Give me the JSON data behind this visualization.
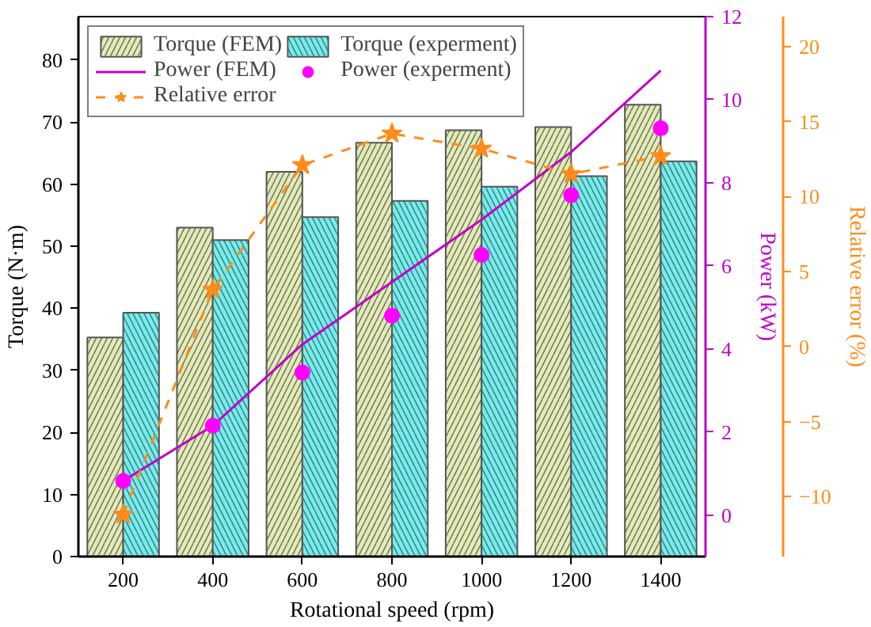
{
  "chart_data": {
    "type": "bar",
    "xlabel": "Rotational speed (rpm)",
    "ylabel": "Torque (N·m)",
    "y2label": "Power (kW)",
    "y3label": "Relative error (%)",
    "categories": [
      "200",
      "400",
      "600",
      "800",
      "1000",
      "1200",
      "1400"
    ],
    "ylim": [
      0,
      87
    ],
    "yticks": [
      0,
      10,
      20,
      30,
      40,
      50,
      60,
      70,
      80
    ],
    "y2lim": [
      -1,
      12
    ],
    "y2ticks": [
      0,
      2,
      4,
      6,
      8,
      10,
      12
    ],
    "y3lim": [
      -14,
      22
    ],
    "y3ticks": [
      -10,
      -5,
      0,
      5,
      10,
      15,
      20
    ],
    "grid": false,
    "legend": "top left",
    "series": [
      {
        "name": "Torque (FEM)",
        "color": "#e2ecb4",
        "values": [
          35.3,
          53.0,
          62.0,
          66.7,
          68.7,
          69.2,
          72.8
        ]
      },
      {
        "name": "Torque (experment)",
        "color": "#6ef0f0",
        "values": [
          39.3,
          51.0,
          54.7,
          57.3,
          59.6,
          61.3,
          63.7
        ]
      },
      {
        "name": "Power (FEM)",
        "type": "line",
        "axis": "y2",
        "color": "#c000c8",
        "marker": "none",
        "line_style": "solid",
        "values": [
          0.82,
          2.15,
          4.11,
          5.61,
          7.11,
          8.74,
          10.7
        ]
      },
      {
        "name": "Power (experment)",
        "type": "scatter",
        "axis": "y2",
        "color": "#ff00ff",
        "marker": "circle",
        "values": [
          0.82,
          2.15,
          3.43,
          4.8,
          6.26,
          7.7,
          9.31
        ]
      },
      {
        "name": "Relative error",
        "type": "line",
        "axis": "y3",
        "color": "#ff8c1a",
        "marker": "star",
        "line_style": "dashed",
        "values": [
          -11.2,
          3.8,
          12.1,
          14.2,
          13.2,
          11.5,
          12.7
        ]
      }
    ]
  }
}
